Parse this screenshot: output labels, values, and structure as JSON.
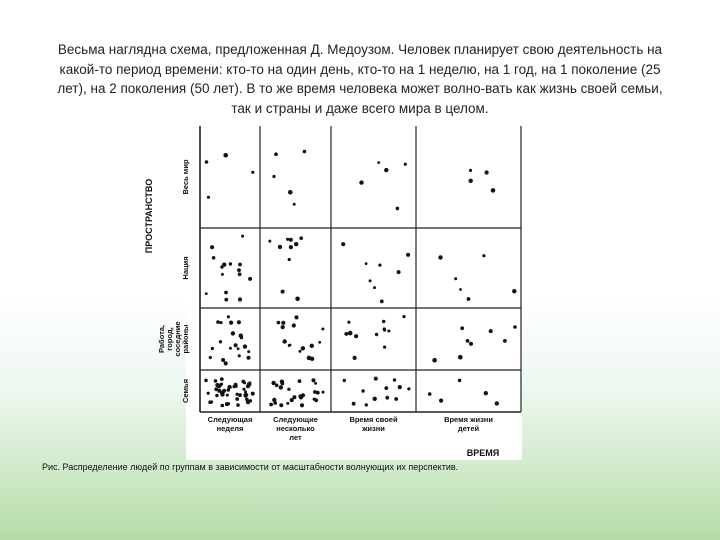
{
  "text": {
    "paragraph": "Весьма наглядна схема, предложенная Д. Медоузом. Человек планирует свою деятельность на какой-то период времени: кто-то на один день, кто-то на 1 неделю, на 1 год, на 1 поколение (25 лет), на 2 поколения (50 лет). В то же время человека может волно-вать как жизнь своей семьи, так и страны и даже всего мира в целом.",
    "caption": "Рис. Распределение людей по группам в зависимости от масштабности волнующих их перспектив."
  },
  "figure": {
    "y_axis_title": "ПРОСТРАНСТВО",
    "x_axis_title": "ВРЕМЯ",
    "rows": [
      {
        "lines": [
          "Весь мир"
        ]
      },
      {
        "lines": [
          "Нация"
        ]
      },
      {
        "lines": [
          "Работа,",
          "город,",
          "соседние",
          "районы"
        ]
      },
      {
        "lines": [
          "Семья"
        ]
      }
    ],
    "columns": [
      {
        "lines": [
          "Следующая",
          "неделя"
        ]
      },
      {
        "lines": [
          "Следующие",
          "несколько",
          "лет"
        ]
      },
      {
        "lines": [
          "Время своей",
          "жизни"
        ]
      },
      {
        "lines": [
          "Время жизни",
          "детей"
        ]
      }
    ],
    "dot_counts": [
      [
        4,
        5,
        5,
        4
      ],
      [
        15,
        10,
        8,
        6
      ],
      [
        20,
        15,
        12,
        8
      ],
      [
        45,
        25,
        12,
        5
      ]
    ]
  }
}
